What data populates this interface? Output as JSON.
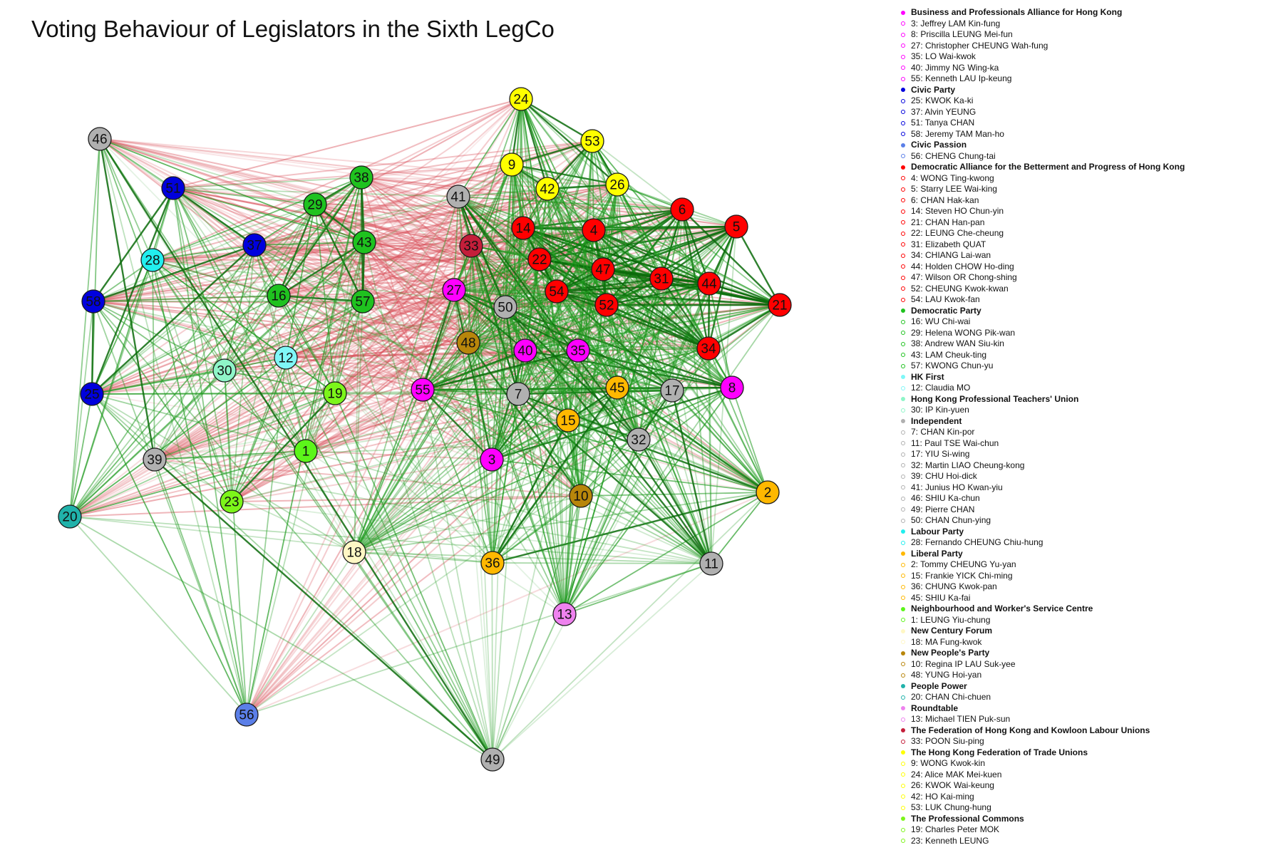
{
  "title": "Voting Behaviour of Legislators in the Sixth LegCo",
  "edge_colors": {
    "agree": "#1f9a1f",
    "agree_strong": "#0b6b0b",
    "disagree": "#d9505a"
  },
  "parties": [
    {
      "name": "Business and Professionals Alliance for Hong Kong",
      "color": "#ff00ff",
      "members": [
        {
          "id": 3,
          "name": "Jeffrey LAM Kin-fung"
        },
        {
          "id": 8,
          "name": "Priscilla LEUNG Mei-fun"
        },
        {
          "id": 27,
          "name": "Christopher CHEUNG Wah-fung"
        },
        {
          "id": 35,
          "name": "LO Wai-kwok"
        },
        {
          "id": 40,
          "name": "Jimmy NG Wing-ka"
        },
        {
          "id": 55,
          "name": "Kenneth LAU Ip-keung"
        }
      ]
    },
    {
      "name": "Civic Party",
      "color": "#0000dd",
      "members": [
        {
          "id": 25,
          "name": "KWOK Ka-ki"
        },
        {
          "id": 37,
          "name": "Alvin YEUNG"
        },
        {
          "id": 51,
          "name": "Tanya CHAN"
        },
        {
          "id": 58,
          "name": "Jeremy TAM Man-ho"
        }
      ]
    },
    {
      "name": "Civic Passion",
      "color": "#5b7fe8",
      "members": [
        {
          "id": 56,
          "name": "CHENG Chung-tai"
        }
      ]
    },
    {
      "name": "Democratic Alliance for the Betterment and Progress of Hong Kong",
      "color": "#ff0000",
      "members": [
        {
          "id": 4,
          "name": "WONG Ting-kwong"
        },
        {
          "id": 5,
          "name": "Starry LEE Wai-king"
        },
        {
          "id": 6,
          "name": "CHAN Hak-kan"
        },
        {
          "id": 14,
          "name": "Steven HO Chun-yin"
        },
        {
          "id": 21,
          "name": "CHAN Han-pan"
        },
        {
          "id": 22,
          "name": "LEUNG Che-cheung"
        },
        {
          "id": 31,
          "name": "Elizabeth QUAT"
        },
        {
          "id": 34,
          "name": "CHIANG Lai-wan"
        },
        {
          "id": 44,
          "name": "Holden CHOW Ho-ding"
        },
        {
          "id": 47,
          "name": "Wilson OR Chong-shing"
        },
        {
          "id": 52,
          "name": "CHEUNG Kwok-kwan"
        },
        {
          "id": 54,
          "name": "LAU Kwok-fan"
        }
      ]
    },
    {
      "name": "Democratic Party",
      "color": "#1fc21f",
      "members": [
        {
          "id": 16,
          "name": "WU Chi-wai"
        },
        {
          "id": 29,
          "name": "Helena WONG Pik-wan"
        },
        {
          "id": 38,
          "name": "Andrew WAN Siu-kin"
        },
        {
          "id": 43,
          "name": "LAM Cheuk-ting"
        },
        {
          "id": 57,
          "name": "KWONG Chun-yu"
        }
      ]
    },
    {
      "name": "HK First",
      "color": "#7ff7f7",
      "members": [
        {
          "id": 12,
          "name": "Claudia MO"
        }
      ]
    },
    {
      "name": "Hong Kong Professional Teachers' Union",
      "color": "#8ff5c8",
      "members": [
        {
          "id": 30,
          "name": "IP Kin-yuen"
        }
      ]
    },
    {
      "name": "Independent",
      "color": "#b0b0b0",
      "members": [
        {
          "id": 7,
          "name": "CHAN Kin-por"
        },
        {
          "id": 11,
          "name": "Paul TSE Wai-chun"
        },
        {
          "id": 17,
          "name": "YIU Si-wing"
        },
        {
          "id": 32,
          "name": "Martin LIAO Cheung-kong"
        },
        {
          "id": 39,
          "name": "CHU Hoi-dick"
        },
        {
          "id": 41,
          "name": "Junius HO Kwan-yiu"
        },
        {
          "id": 46,
          "name": "SHIU Ka-chun"
        },
        {
          "id": 49,
          "name": "Pierre CHAN"
        },
        {
          "id": 50,
          "name": "CHAN Chun-ying"
        }
      ]
    },
    {
      "name": "Labour Party",
      "color": "#22eeee",
      "members": [
        {
          "id": 28,
          "name": "Fernando CHEUNG Chiu-hung"
        }
      ]
    },
    {
      "name": "Liberal Party",
      "color": "#ffb800",
      "members": [
        {
          "id": 2,
          "name": "Tommy CHEUNG Yu-yan"
        },
        {
          "id": 15,
          "name": "Frankie YICK Chi-ming"
        },
        {
          "id": 36,
          "name": "CHUNG Kwok-pan"
        },
        {
          "id": 45,
          "name": "SHIU Ka-fai"
        }
      ]
    },
    {
      "name": "Neighbourhood and Worker's Service Centre",
      "color": "#5cf51a",
      "members": [
        {
          "id": 1,
          "name": "LEUNG Yiu-chung"
        }
      ]
    },
    {
      "name": "New Century Forum",
      "color": "#fff7c4",
      "members": [
        {
          "id": 18,
          "name": "MA Fung-kwok"
        }
      ]
    },
    {
      "name": "New People's Party",
      "color": "#b8860b",
      "members": [
        {
          "id": 10,
          "name": "Regina IP LAU Suk-yee"
        },
        {
          "id": 48,
          "name": "YUNG Hoi-yan"
        }
      ]
    },
    {
      "name": "People Power",
      "color": "#20b2aa",
      "members": [
        {
          "id": 20,
          "name": "CHAN Chi-chuen"
        }
      ]
    },
    {
      "name": "Roundtable",
      "color": "#ee82ee",
      "members": [
        {
          "id": 13,
          "name": "Michael TIEN Puk-sun"
        }
      ]
    },
    {
      "name": "The Federation of Hong Kong and Kowloon Labour Unions",
      "color": "#c41e3a",
      "members": [
        {
          "id": 33,
          "name": "POON Siu-ping"
        }
      ]
    },
    {
      "name": "The Hong Kong Federation of Trade Unions",
      "color": "#ffff00",
      "members": [
        {
          "id": 9,
          "name": "WONG Kwok-kin"
        },
        {
          "id": 24,
          "name": "Alice MAK Mei-kuen"
        },
        {
          "id": 26,
          "name": "KWOK Wai-keung"
        },
        {
          "id": 42,
          "name": "HO Kai-ming"
        },
        {
          "id": 53,
          "name": "LUK Chung-hung"
        }
      ]
    },
    {
      "name": "The Professional Commons",
      "color": "#7cf51a",
      "members": [
        {
          "id": 19,
          "name": "Charles Peter MOK"
        },
        {
          "id": 23,
          "name": "Kenneth LEUNG"
        }
      ]
    }
  ]
}
